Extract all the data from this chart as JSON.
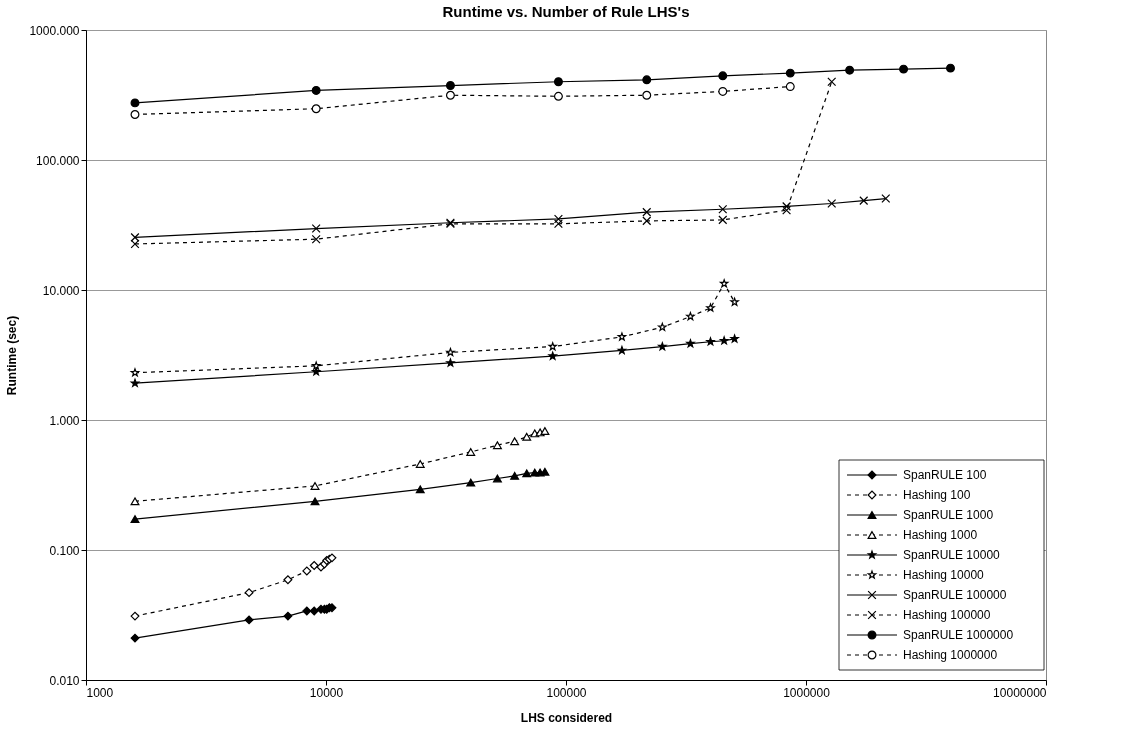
{
  "chart_data": {
    "type": "line",
    "title": "Runtime vs. Number of Rule LHS's",
    "xlabel": "LHS considered",
    "ylabel": "Runtime (sec)",
    "log": "xy",
    "grid": "y",
    "legend": "bottom right",
    "xlim": [
      1000,
      10000000
    ],
    "xticks": [
      1000,
      10000,
      100000,
      1000000,
      10000000
    ],
    "ylim": [
      0.01,
      1000
    ],
    "yticks": [
      {
        "value": 0.01,
        "label": "0.010"
      },
      {
        "value": 0.1,
        "label": "0.100"
      },
      {
        "value": 1,
        "label": "1.000"
      },
      {
        "value": 10,
        "label": "10.000"
      },
      {
        "value": 100,
        "label": "100.000"
      },
      {
        "value": 1000,
        "label": "1000.000"
      }
    ],
    "series": [
      {
        "name": "SpanRULE 100",
        "color": "#000000",
        "marker": "diamond",
        "line_style": "solid",
        "x": [
          1600,
          4780,
          6940,
          8320,
          8930,
          9530,
          9850,
          10070,
          10330,
          10590
        ],
        "values": [
          0.021,
          0.029,
          0.031,
          0.034,
          0.034,
          0.035,
          0.035,
          0.035,
          0.036,
          0.036
        ]
      },
      {
        "name": "Hashing 100",
        "color": "#000000",
        "marker": "diamond",
        "line_style": "dashed",
        "x": [
          1600,
          4780,
          6940,
          8320,
          8930,
          9530,
          9850,
          10070,
          10330,
          10590
        ],
        "values": [
          0.031,
          0.047,
          0.059,
          0.069,
          0.076,
          0.074,
          0.078,
          0.083,
          0.085,
          0.087
        ]
      },
      {
        "name": "SpanRULE 1000",
        "color": "#000000",
        "marker": "triangle",
        "line_style": "solid",
        "x": [
          1600,
          9000,
          24700,
          40100,
          51800,
          61100,
          68600,
          74100,
          78000,
          81700
        ],
        "values": [
          0.173,
          0.237,
          0.293,
          0.33,
          0.355,
          0.372,
          0.389,
          0.394,
          0.395,
          0.4
        ]
      },
      {
        "name": "Hashing 1000",
        "color": "#000000",
        "marker": "triangle",
        "line_style": "dashed",
        "x": [
          1600,
          9000,
          24700,
          40100,
          51800,
          61100,
          68600,
          74100,
          78000,
          81700
        ],
        "values": [
          0.237,
          0.311,
          0.459,
          0.568,
          0.64,
          0.687,
          0.743,
          0.789,
          0.803,
          0.823
        ]
      },
      {
        "name": "SpanRULE 10000",
        "color": "#000000",
        "marker": "star",
        "line_style": "solid",
        "x": [
          1600,
          9100,
          33000,
          88000,
          171000,
          252000,
          330000,
          400000,
          456000,
          504000
        ],
        "values": [
          1.92,
          2.35,
          2.75,
          3.1,
          3.43,
          3.67,
          3.87,
          4.0,
          4.07,
          4.21
        ]
      },
      {
        "name": "Hashing 10000",
        "color": "#000000",
        "marker": "star",
        "line_style": "dashed",
        "x": [
          1600,
          9100,
          33000,
          88000,
          171000,
          252000,
          330000,
          400000,
          456000,
          504000
        ],
        "values": [
          2.31,
          2.61,
          3.31,
          3.67,
          4.36,
          5.17,
          6.25,
          7.28,
          11.2,
          8.07
        ]
      },
      {
        "name": "SpanRULE 100000",
        "color": "#000000",
        "marker": "cross",
        "line_style": "solid",
        "x": [
          1600,
          9100,
          33000,
          93000,
          217000,
          450000,
          830000,
          1280000,
          1740000,
          2150000
        ],
        "values": [
          25.4,
          29.7,
          32.9,
          35.2,
          39.7,
          41.8,
          44.0,
          46.3,
          48.7,
          50.5
        ]
      },
      {
        "name": "Hashing 100000",
        "color": "#000000",
        "marker": "cross",
        "line_style": "dashed",
        "x": [
          1600,
          9100,
          33000,
          93000,
          217000,
          450000,
          830000,
          1280000
        ],
        "values": [
          22.6,
          24.6,
          32.3,
          32.3,
          34.0,
          34.6,
          41.1,
          400
        ]
      },
      {
        "name": "SpanRULE 1000000",
        "color": "#000000",
        "marker": "circle",
        "line_style": "solid",
        "x": [
          1600,
          9100,
          33000,
          93000,
          217000,
          450000,
          860000,
          1520000,
          2550000,
          4000000
        ],
        "values": [
          275,
          343,
          374,
          400,
          414,
          444,
          466,
          491,
          500,
          509
        ]
      },
      {
        "name": "Hashing 1000000",
        "color": "#000000",
        "marker": "circle",
        "line_style": "dashed",
        "x": [
          1600,
          9100,
          33000,
          93000,
          217000,
          450000,
          860000
        ],
        "values": [
          224,
          248,
          315,
          309,
          315,
          337,
          367
        ]
      }
    ]
  }
}
